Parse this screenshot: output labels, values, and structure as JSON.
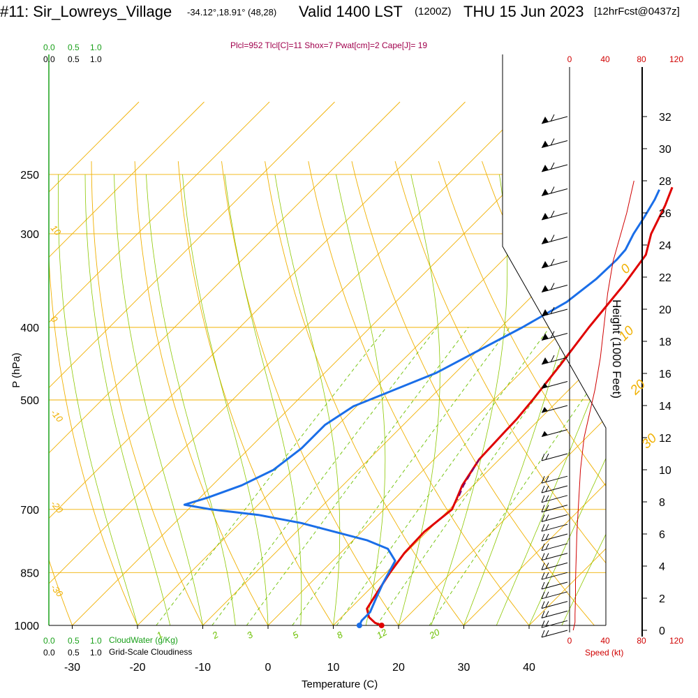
{
  "header": {
    "site": "#11: Sir_Lowreys_Village",
    "coords": "-34.12°,18.91° (48,28)",
    "valid": "Valid 1400 LST",
    "run": "(1200Z)",
    "day": "THU 15 Jun 2023",
    "fcst": "[12hrFcst@0437z]",
    "params": "Plcl=952 Tlcl[C]=11 Shox=7 Pwat[cm]=2 Cape[J]= 19"
  },
  "colors": {
    "temperature": "#e00000",
    "dewpoint": "#1a6ee8",
    "parcel": "#80006a",
    "isotherm": "#f0b000",
    "dry_adiabat": "#f0b000",
    "moist_adiabat": "#8cc800",
    "mixing_ratio": "#6cc000",
    "speed": "#d00000",
    "cloudwater": "#1aa01a"
  },
  "chart_data": {
    "type": "line",
    "title": "#11: Sir_Lowreys_Village",
    "xlabel": "Temperature (C)",
    "ylabel": "P (hPa)",
    "xlim": [
      -35,
      45
    ],
    "ylim": [
      1000,
      250
    ],
    "x_ticks": [
      -30,
      -20,
      -10,
      0,
      10,
      20,
      30,
      40
    ],
    "y_ticks": [
      1000,
      850,
      700,
      500,
      400,
      300,
      250
    ],
    "series": [
      {
        "key": "temperature",
        "points": [
          [
            17.4,
            1000
          ],
          [
            16.0,
            992
          ],
          [
            14.2,
            975
          ],
          [
            12.6,
            950
          ],
          [
            11.6,
            900
          ],
          [
            10.6,
            850
          ],
          [
            9.8,
            800
          ],
          [
            9.6,
            750
          ],
          [
            10.4,
            700
          ],
          [
            9.6,
            680
          ],
          [
            8.3,
            650
          ],
          [
            6.9,
            600
          ],
          [
            6.6,
            550
          ],
          [
            6.5,
            530
          ],
          [
            6.0,
            500
          ],
          [
            4.9,
            450
          ],
          [
            3.5,
            400
          ],
          [
            2.3,
            350
          ],
          [
            1.1,
            320
          ],
          [
            -1.3,
            300
          ],
          [
            -3.5,
            275
          ],
          [
            -5.2,
            260
          ]
        ]
      },
      {
        "key": "dewpoint",
        "points": [
          [
            14.0,
            1000
          ],
          [
            13.6,
            985
          ],
          [
            13.6,
            960
          ],
          [
            12.4,
            920
          ],
          [
            11.2,
            880
          ],
          [
            10.4,
            850
          ],
          [
            9.6,
            820
          ],
          [
            6.6,
            790
          ],
          [
            2.2,
            770
          ],
          [
            -10.6,
            730
          ],
          [
            -18.4,
            712
          ],
          [
            -26.5,
            700
          ],
          [
            -31.3,
            690
          ],
          [
            -28.8,
            675
          ],
          [
            -25.5,
            650
          ],
          [
            -23.0,
            620
          ],
          [
            -22.0,
            580
          ],
          [
            -22.0,
            540
          ],
          [
            -20.5,
            510
          ],
          [
            -12.9,
            460
          ],
          [
            -6.7,
            400
          ],
          [
            -3.8,
            370
          ],
          [
            -2.8,
            345
          ],
          [
            -2.6,
            325
          ],
          [
            -2.8,
            315
          ],
          [
            -4.0,
            300
          ],
          [
            -4.9,
            285
          ],
          [
            -6.0,
            270
          ],
          [
            -6.8,
            262
          ]
        ]
      },
      {
        "key": "parcel",
        "points": [
          [
            6.9,
            600
          ],
          [
            8.5,
            650
          ],
          [
            9.8,
            680
          ]
        ]
      }
    ],
    "isotherms": [
      -100,
      -90,
      -80,
      -70,
      -60,
      -50,
      -40,
      -30,
      -20,
      -10,
      0,
      10,
      20,
      30,
      40
    ],
    "isotherm_labels": [
      {
        "t": "0",
        "p": 340
      },
      {
        "t": "10",
        "p": 418
      },
      {
        "t": "20",
        "p": 493
      },
      {
        "t": "30",
        "p": 582
      }
    ],
    "dry_adiabat_labels": [
      {
        "t": "10",
        "p": 295
      },
      {
        "t": "0",
        "p": 390
      },
      {
        "t": "-10",
        "p": 520
      },
      {
        "t": "-20",
        "p": 688
      },
      {
        "t": "-30",
        "p": 890
      }
    ],
    "mixing_ratio_labels": [
      "1",
      "2",
      "3",
      "5",
      "8",
      "12",
      "20"
    ],
    "mixing_ratio_values": [
      1,
      2,
      3,
      5,
      8,
      12,
      20
    ],
    "speed_axis": {
      "label": "Speed (kt)",
      "ticks": [
        "0",
        "40",
        "80",
        "120"
      ]
    },
    "height_axis": {
      "label": "Height (1000 Feet)",
      "ticks": [
        "0",
        "2",
        "4",
        "6",
        "8",
        "10",
        "12",
        "14",
        "16",
        "18",
        "20",
        "22",
        "24",
        "26",
        "28",
        "30",
        "32"
      ]
    },
    "speed_profile": [
      [
        4,
        0
      ],
      [
        6,
        0.5
      ],
      [
        6,
        1
      ],
      [
        6.5,
        2
      ],
      [
        6.5,
        3
      ],
      [
        7,
        4
      ],
      [
        7.5,
        5
      ],
      [
        8,
        6
      ],
      [
        9,
        7
      ],
      [
        10,
        8
      ],
      [
        11,
        9
      ],
      [
        12,
        10
      ],
      [
        14,
        11
      ],
      [
        16,
        12
      ],
      [
        20,
        13
      ],
      [
        24,
        14
      ],
      [
        28,
        15
      ],
      [
        31,
        16
      ],
      [
        34,
        17
      ],
      [
        36,
        18
      ],
      [
        38,
        19
      ],
      [
        40,
        20
      ],
      [
        42,
        21
      ],
      [
        45,
        22
      ],
      [
        48,
        23
      ],
      [
        53,
        24
      ],
      [
        58,
        25
      ],
      [
        63,
        26
      ],
      [
        67,
        27
      ],
      [
        71,
        28
      ]
    ],
    "cloud_axes": {
      "top_cloudwater_ticks": [
        "0.0",
        "0.5",
        "1.0"
      ],
      "top_cloudiness_ticks": [
        "0.0",
        "0.5",
        "1.0"
      ],
      "bottom_cloudwater_ticks": [
        "0.0",
        "0.5",
        "1.0"
      ],
      "bottom_cloudiness_ticks": [
        "0.0",
        "0.5",
        "1.0"
      ],
      "cloudwater_label": "CloudWater (g/Kg)",
      "cloudiness_label": "Grid-Scale Cloudiness"
    },
    "wind_barb_heights_kft": [
      0,
      0.6,
      1.2,
      1.8,
      2.4,
      3,
      3.6,
      4.2,
      4.8,
      5.4,
      6,
      6.6,
      7.2,
      7.8,
      8.4,
      9,
      9.6,
      11,
      12.5,
      14,
      15.5,
      17,
      18.5,
      20,
      21.5,
      23,
      24.5,
      26,
      27.5,
      29,
      30.5,
      32
    ],
    "grid": true
  }
}
